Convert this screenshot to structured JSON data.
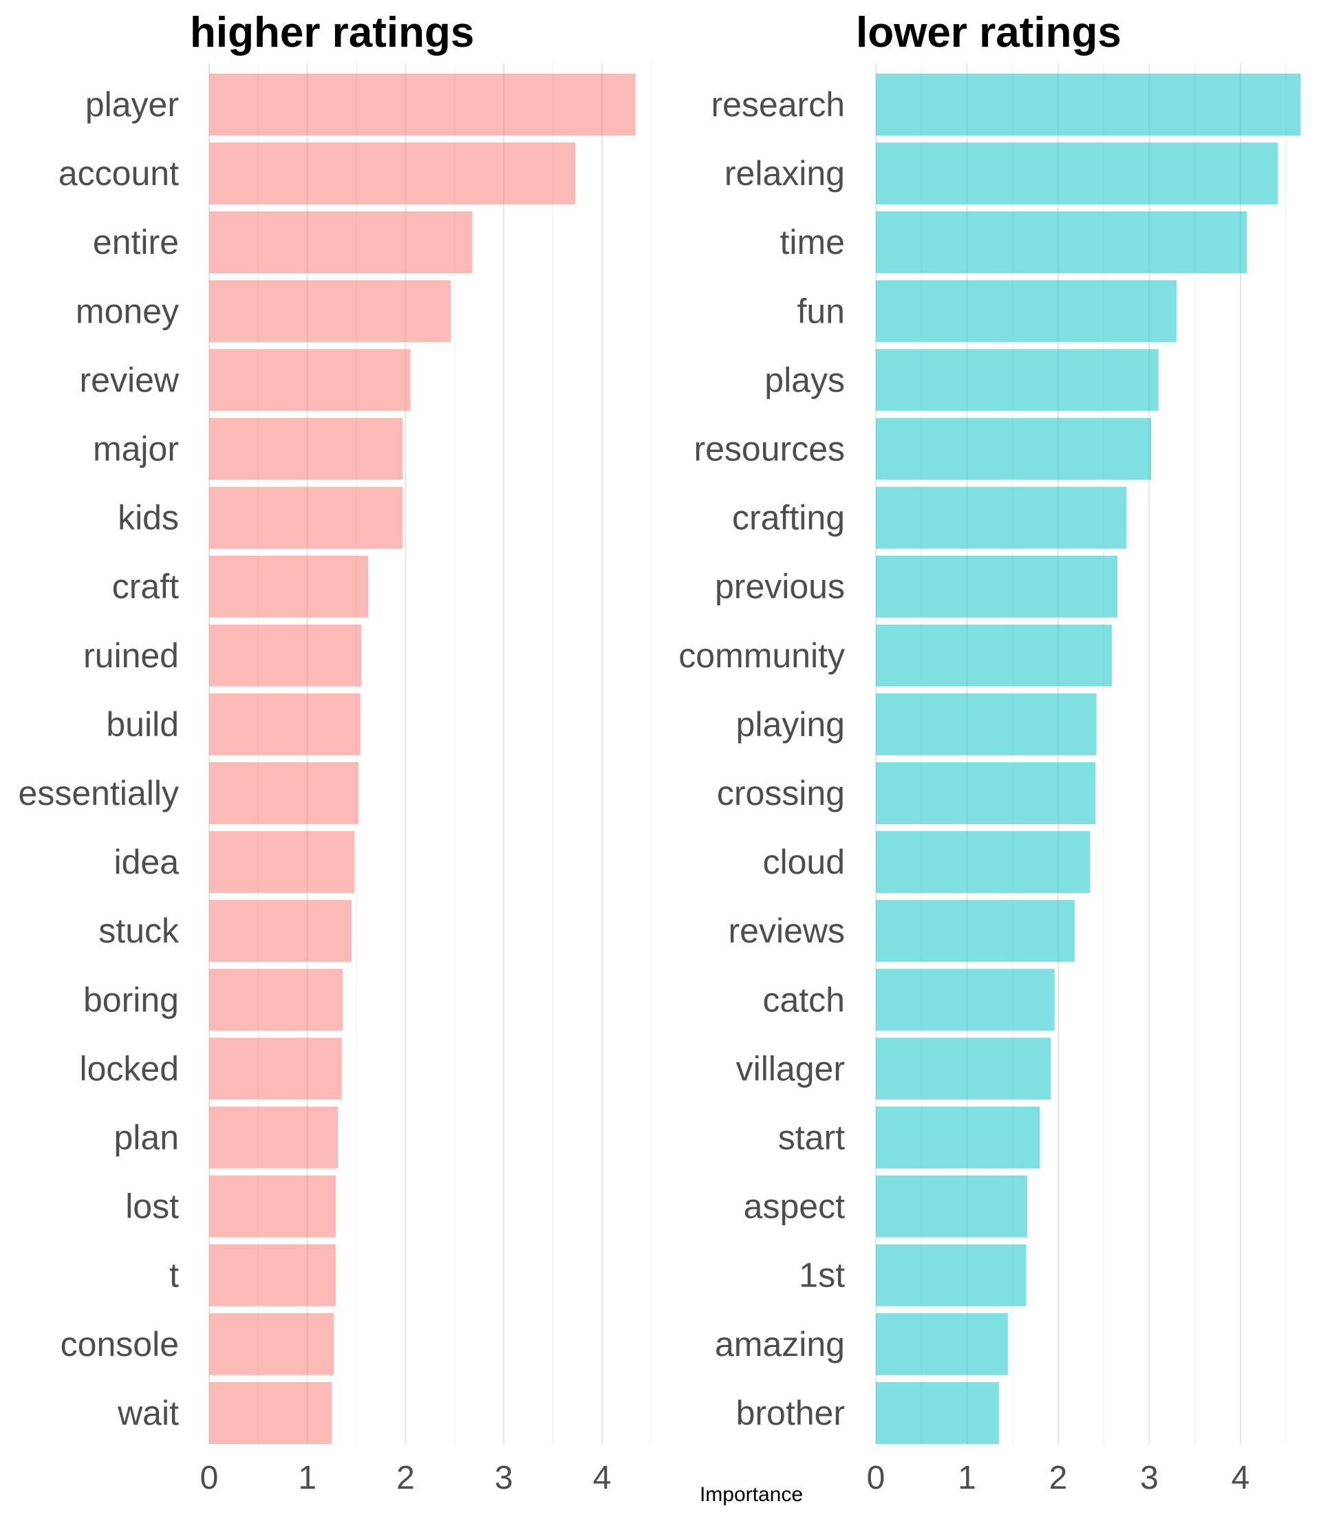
{
  "chart_data": [
    {
      "type": "bar",
      "orientation": "horizontal",
      "title": "higher ratings",
      "color": "#F8766D",
      "categories": [
        "player",
        "account",
        "entire",
        "money",
        "review",
        "major",
        "kids",
        "craft",
        "ruined",
        "build",
        "essentially",
        "idea",
        "stuck",
        "boring",
        "locked",
        "plan",
        "lost",
        "t",
        "console",
        "wait"
      ],
      "values": [
        4.34,
        3.73,
        2.68,
        2.46,
        2.05,
        1.97,
        1.97,
        1.62,
        1.55,
        1.54,
        1.52,
        1.48,
        1.45,
        1.36,
        1.35,
        1.31,
        1.29,
        1.29,
        1.27,
        1.25
      ],
      "xlim": [
        0,
        4.5
      ],
      "xticks": [
        0,
        1,
        2,
        3,
        4
      ]
    },
    {
      "type": "bar",
      "orientation": "horizontal",
      "title": "lower ratings",
      "color": "#00BFC4",
      "categories": [
        "research",
        "relaxing",
        "time",
        "fun",
        "plays",
        "resources",
        "crafting",
        "previous",
        "community",
        "playing",
        "crossing",
        "cloud",
        "reviews",
        "catch",
        "villager",
        "start",
        "aspect",
        "1st",
        "amazing",
        "brother"
      ],
      "values": [
        4.66,
        4.41,
        4.07,
        3.3,
        3.1,
        3.02,
        2.75,
        2.65,
        2.59,
        2.42,
        2.41,
        2.35,
        2.18,
        1.96,
        1.92,
        1.8,
        1.66,
        1.65,
        1.45,
        1.35
      ],
      "xlim": [
        0,
        4.7
      ],
      "xticks": [
        0,
        1,
        2,
        3,
        4
      ]
    }
  ],
  "xlabel": "Importance",
  "grid": true,
  "legend": "none"
}
